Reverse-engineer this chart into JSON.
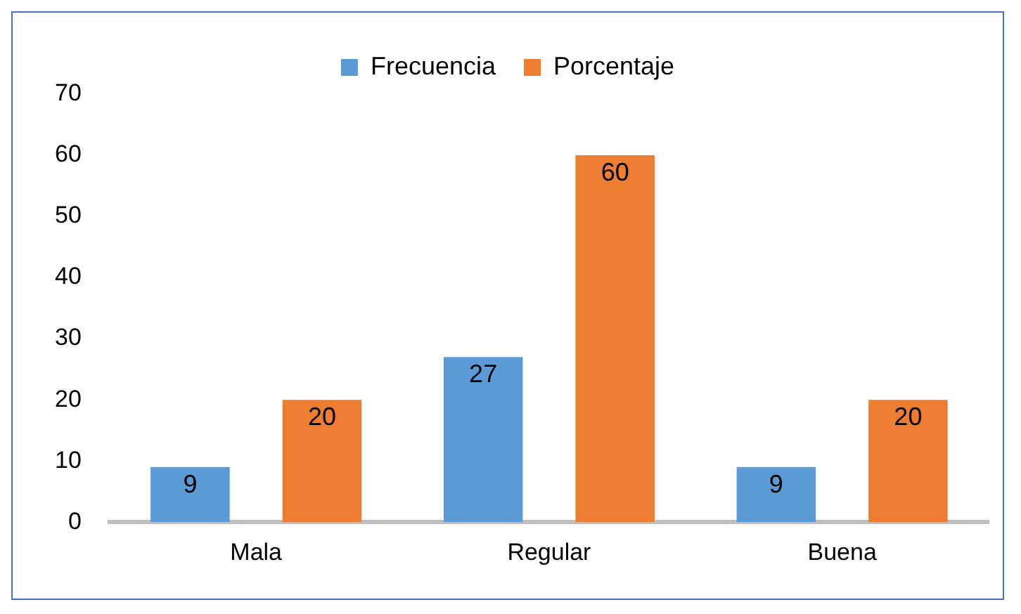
{
  "chart_data": {
    "type": "bar",
    "categories": [
      "Mala",
      "Regular",
      "Buena"
    ],
    "series": [
      {
        "name": "Frecuencia",
        "color": "#5b9bd5",
        "values": [
          9,
          27,
          9
        ]
      },
      {
        "name": "Porcentaje",
        "color": "#ed7d31",
        "values": [
          20,
          60,
          20
        ]
      }
    ],
    "ylim": [
      0,
      70
    ],
    "yticks": [
      0,
      10,
      20,
      30,
      40,
      50,
      60,
      70
    ],
    "grid": false,
    "legend": "top",
    "data_labels": true
  }
}
